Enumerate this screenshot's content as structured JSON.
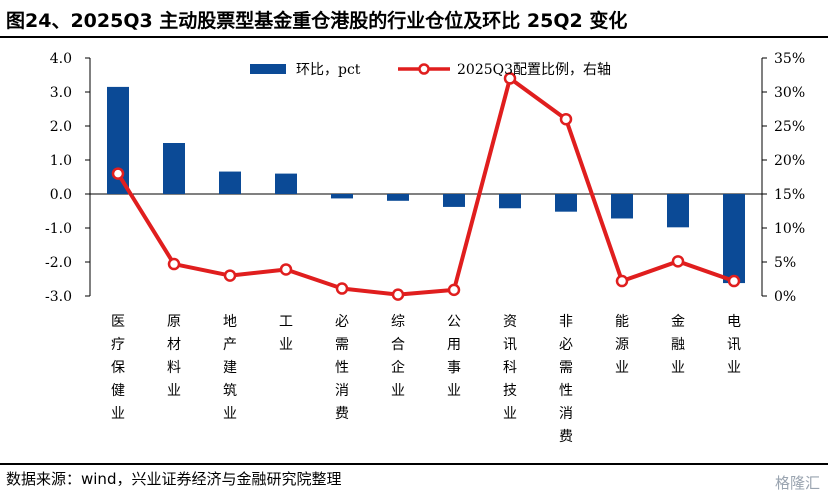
{
  "title": "图24、2025Q3 主动股票型基金重仓港股的行业仓位及环比 25Q2 变化",
  "source": "数据来源：wind，兴业证券经济与金融研究院整理",
  "watermark": "格隆汇",
  "chart_data": {
    "type": "bar+line",
    "categories": [
      "医疗保健业",
      "原材料业",
      "地产建筑业",
      "工业",
      "必需性消费",
      "综合企业",
      "公用事业",
      "资讯科技业",
      "非必需性消费",
      "能源业",
      "金融业",
      "电讯业"
    ],
    "series": [
      {
        "name": "环比，pct",
        "type": "bar",
        "axis": "left",
        "color": "#0b4a96",
        "values": [
          3.15,
          1.5,
          0.66,
          0.6,
          -0.13,
          -0.2,
          -0.38,
          -0.42,
          -0.52,
          -0.72,
          -0.98,
          -2.62
        ]
      },
      {
        "name": "2025Q3配置比例，右轴",
        "type": "line",
        "axis": "right",
        "color": "#e01e1e",
        "values": [
          18.0,
          4.7,
          3.0,
          3.9,
          1.1,
          0.2,
          0.9,
          32.0,
          26.0,
          2.2,
          5.1,
          2.2
        ]
      }
    ],
    "y_left": {
      "min": -3.0,
      "max": 4.0,
      "ticks": [
        "-3.0",
        "-2.0",
        "-1.0",
        "0.0",
        "1.0",
        "2.0",
        "3.0",
        "4.0"
      ]
    },
    "y_right": {
      "min": 0,
      "max": 35,
      "ticks": [
        "0%",
        "5%",
        "10%",
        "15%",
        "20%",
        "25%",
        "30%",
        "35%"
      ]
    },
    "legend_position": "top-center",
    "grid": false
  }
}
